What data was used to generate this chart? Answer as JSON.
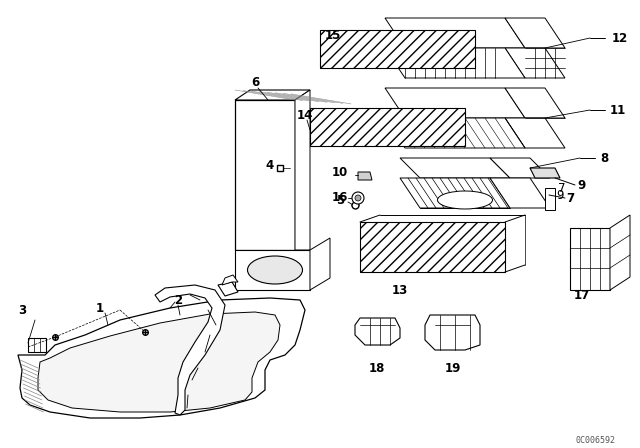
{
  "bg_color": "#ffffff",
  "fig_width": 6.4,
  "fig_height": 4.48,
  "watermark": "0C006592",
  "lc": "#000000",
  "lw": 0.7,
  "parts": {
    "label_fontsize": 8.5
  }
}
